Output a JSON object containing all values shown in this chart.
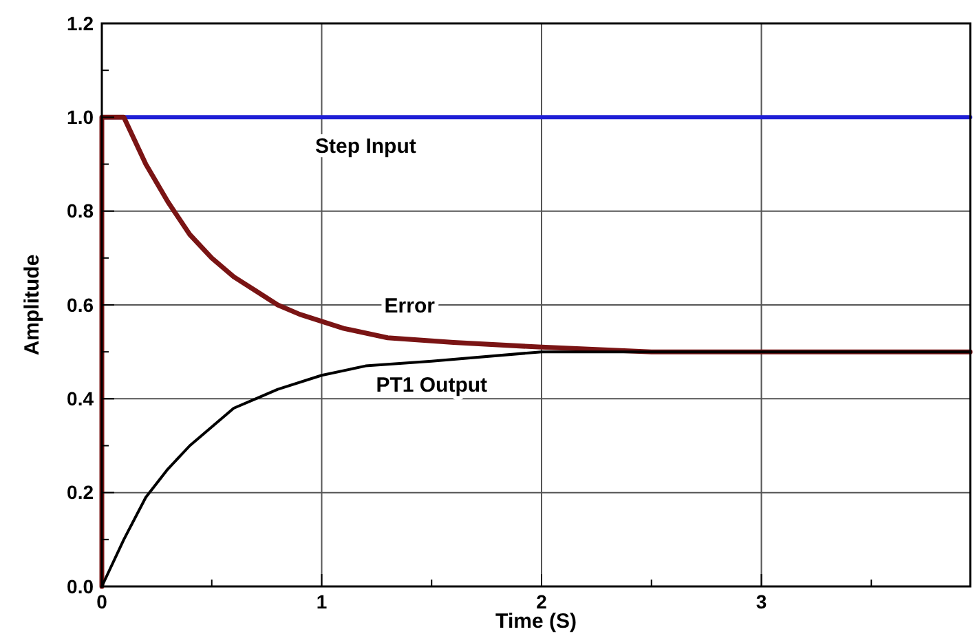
{
  "chart_data": {
    "type": "line",
    "xlabel": "Time (S)",
    "ylabel": "Amplitude",
    "xlim": [
      0,
      3.95
    ],
    "ylim": [
      0,
      1.2
    ],
    "xticks": [
      0,
      {
        "value": 0.5,
        "label": null
      },
      1,
      {
        "value": 1.5,
        "label": null
      },
      2,
      {
        "value": 2.5,
        "label": null
      },
      3,
      {
        "value": 3.5,
        "label": null
      }
    ],
    "yticks": [
      {
        "value": 0,
        "label": "0.0"
      },
      {
        "value": 0.1,
        "label": null
      },
      {
        "value": 0.2,
        "label": "0.2"
      },
      {
        "value": 0.3,
        "label": null
      },
      {
        "value": 0.4,
        "label": "0.4"
      },
      {
        "value": 0.5,
        "label": null
      },
      {
        "value": 0.6,
        "label": "0.6"
      },
      {
        "value": 0.7,
        "label": null
      },
      {
        "value": 0.8,
        "label": "0.8"
      },
      {
        "value": 0.9,
        "label": null
      },
      {
        "value": 1,
        "label": "1.0"
      },
      {
        "value": 1.1,
        "label": null
      },
      {
        "value": 1.2,
        "label": "1.2"
      }
    ],
    "grid": true,
    "marker": "none",
    "line_style": "solid",
    "series": [
      {
        "name": "Step Input",
        "color": "#1f1fd6",
        "x": [
          0,
          3.95
        ],
        "values": [
          1,
          1
        ]
      },
      {
        "name": "Error",
        "color": "#7a1414",
        "x": [
          0,
          0,
          0.1,
          0.2,
          0.3,
          0.4,
          0.5,
          0.6,
          0.7,
          0.8,
          0.9,
          1.1,
          1.3,
          1.6,
          2,
          2.5,
          3,
          3.95
        ],
        "values": [
          0,
          1,
          1,
          0.9,
          0.82,
          0.75,
          0.7,
          0.66,
          0.63,
          0.6,
          0.58,
          0.55,
          0.53,
          0.52,
          0.51,
          0.5,
          0.5,
          0.5
        ]
      },
      {
        "name": "PT1 Output",
        "color": "#000000",
        "x": [
          0,
          0.1,
          0.2,
          0.3,
          0.4,
          0.5,
          0.6,
          0.7,
          0.8,
          1,
          1.2,
          1.5,
          2,
          2.5,
          3,
          3.95
        ],
        "values": [
          0,
          0.1,
          0.19,
          0.25,
          0.3,
          0.34,
          0.38,
          0.4,
          0.42,
          0.45,
          0.47,
          0.48,
          0.5,
          0.5,
          0.5,
          0.5
        ]
      }
    ]
  }
}
